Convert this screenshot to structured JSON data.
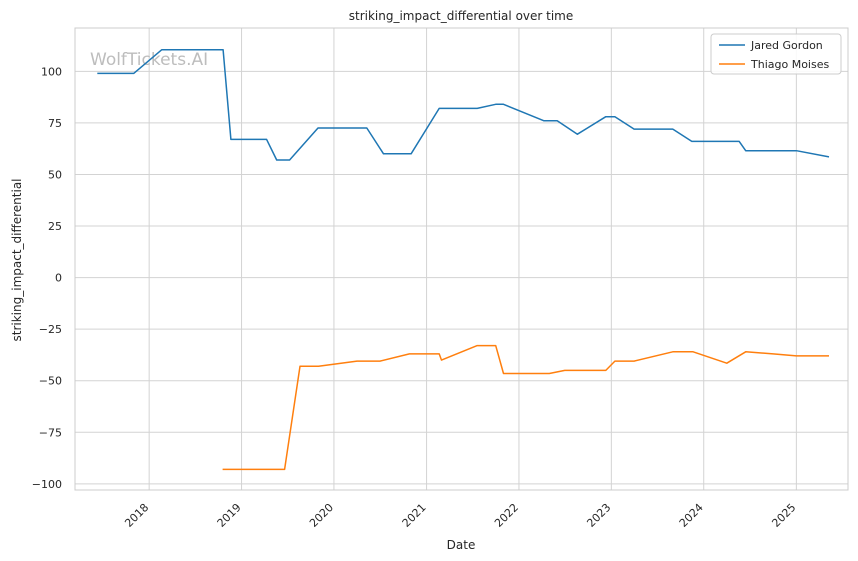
{
  "watermark": "WolfTickets.AI",
  "chart_data": {
    "type": "line",
    "title": "striking_impact_differential over time",
    "xlabel": "Date",
    "ylabel": "striking_impact_differential",
    "x_ticks": [
      "2018",
      "2019",
      "2020",
      "2021",
      "2022",
      "2023",
      "2024",
      "2025"
    ],
    "y_ticks": [
      100,
      75,
      50,
      25,
      0,
      -25,
      -50,
      -75,
      -100
    ],
    "xlim": [
      "2017-03-14",
      "2025-07-24"
    ],
    "ylim": [
      -103,
      121
    ],
    "grid": true,
    "legend_position": "top-right",
    "series": [
      {
        "name": "Jared Gordon",
        "color": "#1f77b4",
        "points": [
          [
            "2017-06-10",
            99
          ],
          [
            "2017-11-01",
            99
          ],
          [
            "2018-02-20",
            110.5
          ],
          [
            "2018-10-20",
            110.5
          ],
          [
            "2018-11-20",
            67
          ],
          [
            "2019-04-10",
            67
          ],
          [
            "2019-05-20",
            57
          ],
          [
            "2019-07-10",
            57
          ],
          [
            "2019-10-30",
            72.5
          ],
          [
            "2020-05-10",
            72.5
          ],
          [
            "2020-07-15",
            60
          ],
          [
            "2020-11-01",
            60
          ],
          [
            "2021-02-20",
            82
          ],
          [
            "2021-07-20",
            82
          ],
          [
            "2021-10-01",
            84
          ],
          [
            "2021-11-01",
            84
          ],
          [
            "2022-04-10",
            76
          ],
          [
            "2022-06-01",
            76
          ],
          [
            "2022-08-20",
            69.5
          ],
          [
            "2022-12-10",
            78
          ],
          [
            "2023-01-15",
            78
          ],
          [
            "2023-04-01",
            72
          ],
          [
            "2023-09-01",
            72
          ],
          [
            "2023-11-15",
            66
          ],
          [
            "2024-05-20",
            66
          ],
          [
            "2024-06-15",
            61.5
          ],
          [
            "2025-01-01",
            61.5
          ],
          [
            "2025-05-10",
            58.5
          ]
        ]
      },
      {
        "name": "Thiago Moises",
        "color": "#ff7f0e",
        "points": [
          [
            "2018-10-18",
            -93
          ],
          [
            "2019-06-20",
            -93
          ],
          [
            "2019-08-20",
            -43
          ],
          [
            "2019-11-01",
            -43
          ],
          [
            "2020-04-01",
            -40.5
          ],
          [
            "2020-07-01",
            -40.5
          ],
          [
            "2020-10-25",
            -37
          ],
          [
            "2021-02-20",
            -37
          ],
          [
            "2021-03-01",
            -40
          ],
          [
            "2021-07-20",
            -33
          ],
          [
            "2021-10-01",
            -33
          ],
          [
            "2021-11-01",
            -46.5
          ],
          [
            "2022-05-01",
            -46.5
          ],
          [
            "2022-07-01",
            -45
          ],
          [
            "2022-12-10",
            -45
          ],
          [
            "2023-01-15",
            -40.5
          ],
          [
            "2023-04-01",
            -40.5
          ],
          [
            "2023-09-01",
            -36
          ],
          [
            "2023-11-20",
            -36
          ],
          [
            "2024-04-01",
            -41.5
          ],
          [
            "2024-06-15",
            -36
          ],
          [
            "2024-10-01",
            -37
          ],
          [
            "2025-01-01",
            -38
          ],
          [
            "2025-05-10",
            -38
          ]
        ]
      }
    ]
  }
}
